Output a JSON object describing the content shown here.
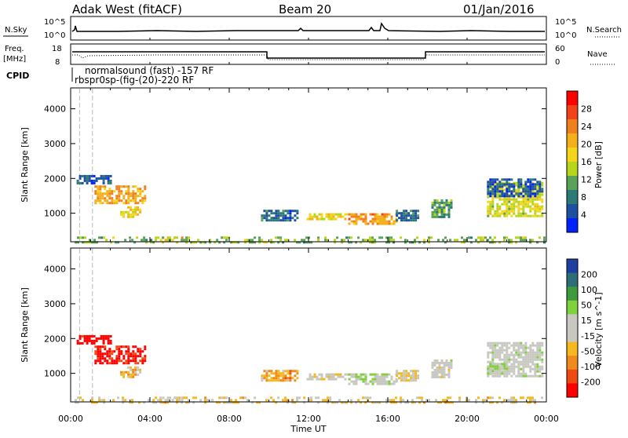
{
  "header": {
    "station": "Adak West (fitACF)",
    "beam": "Beam 20",
    "date": "01/Jan/2016"
  },
  "top_panels": {
    "nsky_label": "N.Sky",
    "nsky_ticks": [
      "10^5",
      "10^0"
    ],
    "nsearch_label": "N.Search",
    "nsearch_ticks": [
      "10^5",
      "10^0"
    ],
    "freq_label": "Freq.",
    "freq_unit": "[MHz]",
    "freq_ticks": [
      "18",
      "8"
    ],
    "nave_label": "Nave",
    "nave_ticks": [
      "60",
      "0"
    ],
    "cpid_label": "CPID",
    "cpid_entries": [
      "normalsound (fast) -157 RF",
      "rbspr0sp-(fig-(20)-220 RF"
    ]
  },
  "colorbars": {
    "power": {
      "label": "Power [dB]",
      "ticks": [
        "28",
        "24",
        "20",
        "16",
        "12",
        "8",
        "4"
      ],
      "colors": [
        "#ff0000",
        "#f2421a",
        "#f07f1e",
        "#f3b01a",
        "#f5d51a",
        "#b8d51e",
        "#5aa25a",
        "#2c7a78",
        "#1f4fa0",
        "#0022ff"
      ]
    },
    "velocity": {
      "label": "Velocity [m s^-1]",
      "ticks": [
        "200",
        "100",
        "50",
        "15",
        "-15",
        "-50",
        "-100",
        "-200"
      ],
      "colors": [
        "#1f3fa0",
        "#2c6e78",
        "#3d9a3d",
        "#7fd23d",
        "#c8c8c0",
        "#c8c8c0",
        "#f5b820",
        "#f08a1c",
        "#f04a14",
        "#ff0000"
      ]
    }
  },
  "axes": {
    "y_label": "Slant Range [km]",
    "x_label": "Time UT",
    "x_ticks": [
      "00:00",
      "04:00",
      "08:00",
      "12:00",
      "16:00",
      "20:00",
      "00:00"
    ],
    "y_ticks": [
      "4000",
      "3000",
      "2000",
      "1000"
    ]
  },
  "chart_data": [
    {
      "type": "heatmap",
      "title": "Power",
      "ylabel": "Slant Range [km]",
      "xlabel": "Time UT",
      "xlim_hours": [
        0,
        24
      ],
      "ylim_km": [
        180,
        4600
      ],
      "clim": [
        0,
        30
      ],
      "patches": [
        {
          "t0": 0.3,
          "t1": 2.0,
          "r0": 1850,
          "r1": 2100,
          "value": 5
        },
        {
          "t0": 1.2,
          "t1": 3.8,
          "r0": 1300,
          "r1": 1800,
          "value": 20
        },
        {
          "t0": 2.5,
          "t1": 3.5,
          "r0": 900,
          "r1": 1200,
          "value": 17
        },
        {
          "t0": 4.5,
          "t1": 6.3,
          "r0": 220,
          "r1": 330,
          "value": 20
        },
        {
          "t0": 9.6,
          "t1": 11.4,
          "r0": 800,
          "r1": 1100,
          "value": 6
        },
        {
          "t0": 11.9,
          "t1": 14.0,
          "r0": 800,
          "r1": 1000,
          "value": 16
        },
        {
          "t0": 14.0,
          "t1": 16.4,
          "r0": 700,
          "r1": 1000,
          "value": 21
        },
        {
          "t0": 16.4,
          "t1": 17.5,
          "r0": 800,
          "r1": 1100,
          "value": 6
        },
        {
          "t0": 18.2,
          "t1": 19.2,
          "r0": 900,
          "r1": 1400,
          "value": 10
        },
        {
          "t0": 21.0,
          "t1": 23.8,
          "r0": 900,
          "r1": 1900,
          "value": 15
        },
        {
          "t0": 21.0,
          "t1": 23.8,
          "r0": 1500,
          "r1": 2000,
          "value": 5
        },
        {
          "t0": 0.2,
          "t1": 23.9,
          "r0": 180,
          "r1": 330,
          "value": 12
        }
      ]
    },
    {
      "type": "heatmap",
      "title": "Velocity",
      "ylabel": "Slant Range [km]",
      "xlabel": "Time UT",
      "xlim_hours": [
        0,
        24
      ],
      "ylim_km": [
        180,
        4600
      ],
      "clim": [
        -200,
        200
      ],
      "patches": [
        {
          "t0": 0.3,
          "t1": 2.0,
          "r0": 1850,
          "r1": 2100,
          "value": -200
        },
        {
          "t0": 1.2,
          "t1": 3.8,
          "r0": 1300,
          "r1": 1800,
          "value": -180
        },
        {
          "t0": 2.5,
          "t1": 3.5,
          "r0": 900,
          "r1": 1200,
          "value": -60
        },
        {
          "t0": 4.5,
          "t1": 6.3,
          "r0": 220,
          "r1": 330,
          "value": 0
        },
        {
          "t0": 9.6,
          "t1": 11.4,
          "r0": 800,
          "r1": 1100,
          "value": -80
        },
        {
          "t0": 11.9,
          "t1": 14.0,
          "r0": 800,
          "r1": 1000,
          "value": -20
        },
        {
          "t0": 14.0,
          "t1": 16.4,
          "r0": 700,
          "r1": 1000,
          "value": 30
        },
        {
          "t0": 16.4,
          "t1": 17.5,
          "r0": 800,
          "r1": 1100,
          "value": -30
        },
        {
          "t0": 18.2,
          "t1": 19.2,
          "r0": 900,
          "r1": 1400,
          "value": 0
        },
        {
          "t0": 21.0,
          "t1": 23.8,
          "r0": 900,
          "r1": 1900,
          "value": 5
        },
        {
          "t0": 21.0,
          "t1": 22.0,
          "r0": 1000,
          "r1": 1300,
          "value": 40
        },
        {
          "t0": 0.2,
          "t1": 23.9,
          "r0": 180,
          "r1": 330,
          "value": -40
        }
      ]
    }
  ]
}
